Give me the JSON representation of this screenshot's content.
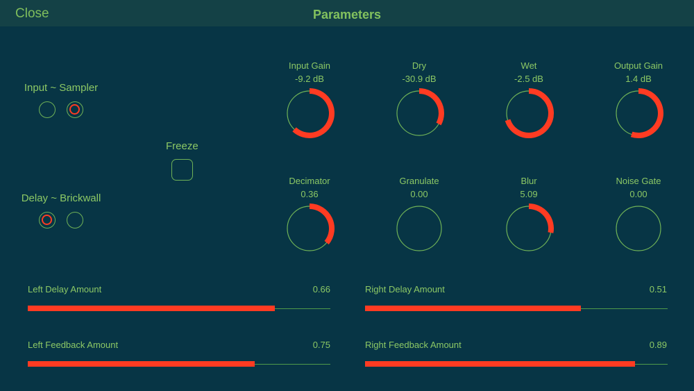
{
  "header": {
    "close_label": "Close",
    "title": "Parameters"
  },
  "input_group": {
    "label": "Input ~ Sampler",
    "selected_index": 1
  },
  "delay_group": {
    "label": "Delay ~ Brickwall",
    "selected_index": 0
  },
  "freeze": {
    "label": "Freeze",
    "on": false
  },
  "knobs": [
    {
      "label": "Input Gain",
      "value": "-9.2 dB",
      "arc_start": 0.0,
      "arc_end": 0.62
    },
    {
      "label": "Dry",
      "value": "-30.9 dB",
      "arc_start": 0.0,
      "arc_end": 0.33
    },
    {
      "label": "Wet",
      "value": "-2.5 dB",
      "arc_start": 0.0,
      "arc_end": 0.7
    },
    {
      "label": "Output Gain",
      "value": "1.4 dB",
      "arc_start": 0.0,
      "arc_end": 0.55
    },
    {
      "label": "Decimator",
      "value": "0.36",
      "arc_start": 0.0,
      "arc_end": 0.36
    },
    {
      "label": "Granulate",
      "value": "0.00",
      "arc_start": 0.0,
      "arc_end": 0.0
    },
    {
      "label": "Blur",
      "value": "5.09",
      "arc_start": 0.0,
      "arc_end": 0.28
    },
    {
      "label": "Noise Gate",
      "value": "0.00",
      "arc_start": 0.0,
      "arc_end": 0.0
    }
  ],
  "sliders": [
    {
      "label": "Left Delay Amount",
      "value": "0.66",
      "fill": 0.816
    },
    {
      "label": "Right Delay Amount",
      "value": "0.51",
      "fill": 0.713
    },
    {
      "label": "Left Feedback Amount",
      "value": "0.75",
      "fill": 0.749
    },
    {
      "label": "Right Feedback Amount",
      "value": "0.89",
      "fill": 0.892
    }
  ],
  "colors": {
    "background": "#073545",
    "accent": "#ff3b22",
    "text": "#8cc865",
    "outline": "#6fb257"
  }
}
